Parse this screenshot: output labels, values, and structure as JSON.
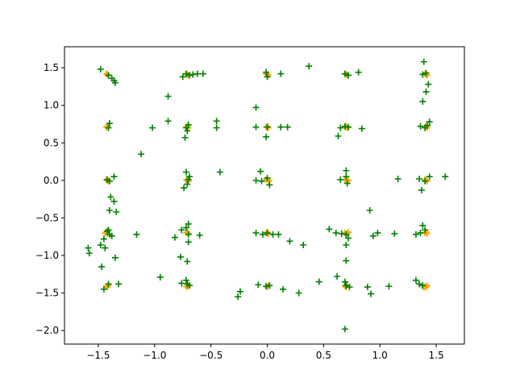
{
  "chart_data": {
    "type": "scatter",
    "title": "",
    "xlabel": "",
    "ylabel": "",
    "xlim": [
      -1.8,
      1.75
    ],
    "ylim": [
      -2.18,
      1.78
    ],
    "grid": false,
    "legend": "none",
    "marker": "plus",
    "x_ticks": [
      {
        "value": -1.5,
        "label": "−1.5"
      },
      {
        "value": -1.0,
        "label": "−1.0"
      },
      {
        "value": -0.5,
        "label": "−0.5"
      },
      {
        "value": 0.0,
        "label": "0.0"
      },
      {
        "value": 0.5,
        "label": "0.5"
      },
      {
        "value": 1.0,
        "label": "1.0"
      },
      {
        "value": 1.5,
        "label": "1.5"
      }
    ],
    "y_ticks": [
      {
        "value": 1.5,
        "label": "1.5"
      },
      {
        "value": 1.0,
        "label": "1.0"
      },
      {
        "value": 0.5,
        "label": "0.5"
      },
      {
        "value": 0.0,
        "label": "0.0"
      },
      {
        "value": -0.5,
        "label": "−0.5"
      },
      {
        "value": -1.0,
        "label": "−1.0"
      },
      {
        "value": -1.5,
        "label": "−1.5"
      },
      {
        "value": -2.0,
        "label": "−2.0"
      }
    ],
    "series": [
      {
        "color": "#ffa500",
        "points": [
          [
            -1.43,
            1.42
          ],
          [
            -1.41,
            1.4
          ],
          [
            -1.42,
            1.41
          ],
          [
            -0.72,
            1.42
          ],
          [
            -0.7,
            1.4
          ],
          [
            -0.71,
            1.41
          ],
          [
            -0.01,
            1.42
          ],
          [
            0.01,
            1.4
          ],
          [
            0.0,
            1.41
          ],
          [
            0.69,
            1.42
          ],
          [
            0.71,
            1.4
          ],
          [
            0.7,
            1.41
          ],
          [
            1.4,
            1.42
          ],
          [
            1.42,
            1.4
          ],
          [
            1.41,
            1.41
          ],
          [
            -1.43,
            0.71
          ],
          [
            -1.41,
            0.7
          ],
          [
            -1.42,
            0.72
          ],
          [
            -0.72,
            0.71
          ],
          [
            -0.7,
            0.7
          ],
          [
            -0.71,
            0.72
          ],
          [
            -0.01,
            0.71
          ],
          [
            0.01,
            0.7
          ],
          [
            0.0,
            0.72
          ],
          [
            0.69,
            0.71
          ],
          [
            0.71,
            0.7
          ],
          [
            0.7,
            0.72
          ],
          [
            1.4,
            0.71
          ],
          [
            1.42,
            0.7
          ],
          [
            1.41,
            0.72
          ],
          [
            -1.43,
            0.01
          ],
          [
            -1.41,
            -0.01
          ],
          [
            -1.42,
            0.0
          ],
          [
            -0.72,
            0.01
          ],
          [
            -0.7,
            -0.01
          ],
          [
            -0.71,
            0.0
          ],
          [
            -0.01,
            0.01
          ],
          [
            0.01,
            -0.01
          ],
          [
            0.02,
            0.0
          ],
          [
            0.69,
            0.01
          ],
          [
            0.71,
            -0.01
          ],
          [
            0.72,
            0.0
          ],
          [
            1.4,
            0.01
          ],
          [
            1.42,
            -0.01
          ],
          [
            1.41,
            0.0
          ],
          [
            -1.44,
            -0.7
          ],
          [
            -1.42,
            -0.71
          ],
          [
            -1.43,
            -0.69
          ],
          [
            -0.72,
            -0.7
          ],
          [
            -0.7,
            -0.71
          ],
          [
            -0.71,
            -0.69
          ],
          [
            -0.01,
            -0.7
          ],
          [
            0.01,
            -0.71
          ],
          [
            0.0,
            -0.69
          ],
          [
            0.69,
            -0.7
          ],
          [
            0.71,
            -0.71
          ],
          [
            0.72,
            -0.69
          ],
          [
            1.4,
            -0.7
          ],
          [
            1.42,
            -0.71
          ],
          [
            1.41,
            -0.69
          ],
          [
            -1.43,
            -1.41
          ],
          [
            -1.41,
            -1.4
          ],
          [
            -1.42,
            -1.42
          ],
          [
            -0.72,
            -1.41
          ],
          [
            -0.7,
            -1.4
          ],
          [
            -0.71,
            -1.42
          ],
          [
            -0.01,
            -1.41
          ],
          [
            0.01,
            -1.4
          ],
          [
            0.0,
            -1.42
          ],
          [
            0.69,
            -1.41
          ],
          [
            0.71,
            -1.4
          ],
          [
            0.7,
            -1.42
          ],
          [
            1.4,
            -1.41
          ],
          [
            1.42,
            -1.4
          ],
          [
            1.41,
            -1.42
          ],
          [
            1.39,
            -1.43
          ]
        ]
      },
      {
        "color": "#008000",
        "points": [
          [
            -1.48,
            1.48
          ],
          [
            -1.41,
            1.4
          ],
          [
            -1.38,
            1.36
          ],
          [
            -1.36,
            1.33
          ],
          [
            -1.35,
            1.3
          ],
          [
            -0.75,
            1.38
          ],
          [
            -0.72,
            1.42
          ],
          [
            -0.69,
            1.4
          ],
          [
            -0.66,
            1.41
          ],
          [
            -0.62,
            1.42
          ],
          [
            -0.57,
            1.42
          ],
          [
            -0.01,
            1.44
          ],
          [
            0.0,
            1.38
          ],
          [
            0.12,
            1.42
          ],
          [
            0.37,
            1.52
          ],
          [
            0.69,
            1.42
          ],
          [
            0.72,
            1.4
          ],
          [
            0.81,
            1.44
          ],
          [
            1.39,
            1.58
          ],
          [
            1.38,
            1.41
          ],
          [
            1.41,
            1.43
          ],
          [
            1.43,
            1.28
          ],
          [
            1.41,
            1.18
          ],
          [
            1.38,
            1.05
          ],
          [
            -0.88,
            1.12
          ],
          [
            -1.41,
            0.7
          ],
          [
            -1.4,
            0.76
          ],
          [
            -1.02,
            0.7
          ],
          [
            -0.88,
            0.79
          ],
          [
            -0.72,
            0.7
          ],
          [
            -0.7,
            0.74
          ],
          [
            -0.71,
            0.66
          ],
          [
            -0.73,
            0.57
          ],
          [
            -0.45,
            0.79
          ],
          [
            -0.45,
            0.7
          ],
          [
            -0.1,
            0.97
          ],
          [
            -0.1,
            0.71
          ],
          [
            0.0,
            0.71
          ],
          [
            -0.01,
            0.58
          ],
          [
            0.12,
            0.71
          ],
          [
            0.18,
            0.71
          ],
          [
            0.63,
            0.59
          ],
          [
            0.69,
            0.72
          ],
          [
            0.72,
            0.71
          ],
          [
            0.84,
            0.69
          ],
          [
            0.65,
            0.7
          ],
          [
            1.36,
            0.72
          ],
          [
            1.4,
            0.7
          ],
          [
            1.42,
            0.73
          ],
          [
            1.44,
            0.78
          ],
          [
            -1.12,
            0.35
          ],
          [
            -1.42,
            0.01
          ],
          [
            -1.4,
            -0.01
          ],
          [
            -1.36,
            0.05
          ],
          [
            -1.39,
            -0.22
          ],
          [
            -1.36,
            -0.28
          ],
          [
            -1.4,
            -0.4
          ],
          [
            -1.34,
            -0.42
          ],
          [
            -0.72,
            0.11
          ],
          [
            -0.7,
            0.01
          ],
          [
            -0.71,
            -0.05
          ],
          [
            -0.74,
            -0.1
          ],
          [
            -0.69,
            0.05
          ],
          [
            -0.42,
            0.11
          ],
          [
            -0.1,
            0.0
          ],
          [
            0.0,
            0.03
          ],
          [
            -0.05,
            -0.01
          ],
          [
            -0.06,
            0.12
          ],
          [
            0.02,
            -0.06
          ],
          [
            0.65,
            0.01
          ],
          [
            0.7,
            0.13
          ],
          [
            0.71,
            -0.04
          ],
          [
            0.7,
            0.05
          ],
          [
            1.16,
            0.02
          ],
          [
            1.35,
            0.02
          ],
          [
            1.37,
            -0.13
          ],
          [
            1.4,
            -0.01
          ],
          [
            1.44,
            0.05
          ],
          [
            1.58,
            0.05
          ],
          [
            -1.45,
            -0.78
          ],
          [
            -1.42,
            -0.68
          ],
          [
            -1.4,
            -0.72
          ],
          [
            -1.38,
            -0.74
          ],
          [
            -1.41,
            -0.66
          ],
          [
            -1.48,
            -0.86
          ],
          [
            -1.44,
            -0.9
          ],
          [
            -1.35,
            -1.03
          ],
          [
            -1.16,
            -0.72
          ],
          [
            -1.59,
            -0.9
          ],
          [
            -1.58,
            -0.97
          ],
          [
            -1.47,
            -1.15
          ],
          [
            -0.82,
            -0.76
          ],
          [
            -0.76,
            -0.66
          ],
          [
            -0.72,
            -0.63
          ],
          [
            -0.7,
            -0.58
          ],
          [
            -0.7,
            -0.72
          ],
          [
            -0.7,
            -0.82
          ],
          [
            -0.77,
            -1.02
          ],
          [
            -0.71,
            -1.08
          ],
          [
            -0.6,
            -0.73
          ],
          [
            -0.1,
            -0.7
          ],
          [
            -0.04,
            -0.72
          ],
          [
            0.0,
            -0.7
          ],
          [
            0.05,
            -0.72
          ],
          [
            0.1,
            -0.72
          ],
          [
            0.2,
            -0.81
          ],
          [
            0.32,
            -0.86
          ],
          [
            0.55,
            -0.65
          ],
          [
            0.61,
            -0.7
          ],
          [
            0.66,
            -0.71
          ],
          [
            0.7,
            -0.72
          ],
          [
            0.72,
            -0.77
          ],
          [
            0.7,
            -0.86
          ],
          [
            0.7,
            -1.07
          ],
          [
            0.91,
            -0.4
          ],
          [
            0.94,
            -0.74
          ],
          [
            0.98,
            -0.7
          ],
          [
            1.13,
            -0.71
          ],
          [
            1.32,
            -0.72
          ],
          [
            1.38,
            -0.6
          ],
          [
            1.4,
            -0.66
          ],
          [
            1.36,
            -0.7
          ],
          [
            -1.45,
            -1.45
          ],
          [
            -1.41,
            -1.38
          ],
          [
            -1.32,
            -1.38
          ],
          [
            -0.95,
            -1.29
          ],
          [
            -0.76,
            -1.37
          ],
          [
            -0.72,
            -1.33
          ],
          [
            -0.71,
            -1.38
          ],
          [
            -0.69,
            -1.4
          ],
          [
            -0.26,
            -1.55
          ],
          [
            -0.24,
            -1.48
          ],
          [
            -0.08,
            -1.39
          ],
          [
            -0.01,
            -1.41
          ],
          [
            0.02,
            -1.4
          ],
          [
            0.14,
            -1.45
          ],
          [
            0.28,
            -1.5
          ],
          [
            0.46,
            -1.35
          ],
          [
            0.62,
            -1.28
          ],
          [
            0.69,
            -1.35
          ],
          [
            0.7,
            -1.4
          ],
          [
            0.73,
            -1.42
          ],
          [
            0.69,
            -1.98
          ],
          [
            0.89,
            -1.42
          ],
          [
            0.92,
            -1.51
          ],
          [
            1.08,
            -1.41
          ],
          [
            1.32,
            -1.33
          ],
          [
            1.35,
            -1.38
          ],
          [
            1.38,
            -1.4
          ]
        ]
      }
    ]
  }
}
